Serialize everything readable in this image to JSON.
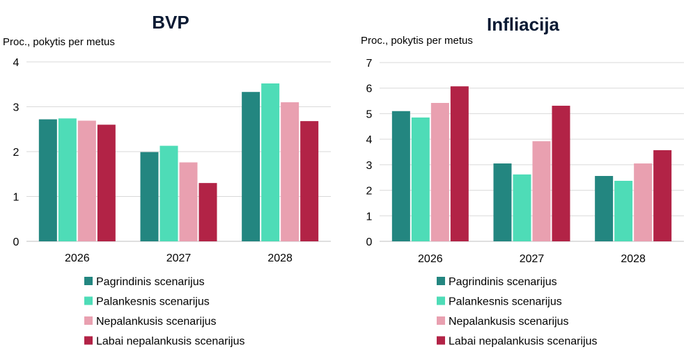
{
  "colors": [
    "#238680",
    "#4edcb7",
    "#e9a0b0",
    "#b22346"
  ],
  "chart_data": [
    {
      "type": "bar",
      "title": "BVP",
      "ylabel": "Proc., pokytis per metus",
      "categories": [
        "2026",
        "2027",
        "2028"
      ],
      "ylim": [
        0,
        4
      ],
      "yticks": [
        0,
        1,
        2,
        3,
        4
      ],
      "grid": true,
      "legend_position": "bottom",
      "series": [
        {
          "name": "Pagrindinis scenarijus",
          "values": [
            2.72,
            1.99,
            3.33
          ]
        },
        {
          "name": "Palankesnis scenarijus",
          "values": [
            2.74,
            2.13,
            3.52
          ]
        },
        {
          "name": "Nepalankusis scenarijus",
          "values": [
            2.69,
            1.76,
            3.1
          ]
        },
        {
          "name": "Labai nepalankusis scenarijus",
          "values": [
            2.6,
            1.3,
            2.68
          ]
        }
      ]
    },
    {
      "type": "bar",
      "title": "Infliacija",
      "ylabel": "Proc., pokytis per metus",
      "categories": [
        "2026",
        "2027",
        "2028"
      ],
      "ylim": [
        0,
        7
      ],
      "yticks": [
        0,
        1,
        2,
        3,
        4,
        5,
        6,
        7
      ],
      "grid": true,
      "legend_position": "bottom",
      "series": [
        {
          "name": "Pagrindinis scenarijus",
          "values": [
            5.1,
            3.05,
            2.56
          ]
        },
        {
          "name": "Palankesnis scenarijus",
          "values": [
            4.85,
            2.62,
            2.37
          ]
        },
        {
          "name": "Nepalankusis scenarijus",
          "values": [
            5.42,
            3.92,
            3.05
          ]
        },
        {
          "name": "Labai nepalankusis scenarijus",
          "values": [
            6.07,
            5.31,
            3.57
          ]
        }
      ]
    }
  ]
}
